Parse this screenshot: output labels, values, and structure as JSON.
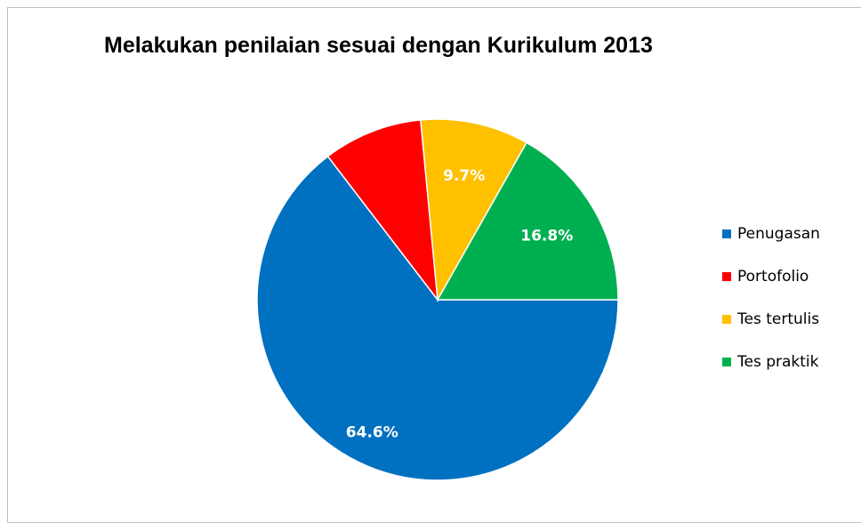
{
  "chart_data": {
    "type": "pie",
    "title": "Melakukan penilaian sesuai dengan Kurikulum 2013",
    "categories": [
      "Penugasan",
      "Portofolio",
      "Tes tertulis",
      "Tes praktik"
    ],
    "values": [
      64.6,
      8.9,
      9.7,
      16.8
    ],
    "value_labels": [
      "64.6%",
      null,
      "9.7%",
      "16.8%"
    ],
    "colors": [
      "#0070c0",
      "#ff0000",
      "#ffc000",
      "#00b050"
    ],
    "start_angle": 90,
    "legend": "right"
  }
}
